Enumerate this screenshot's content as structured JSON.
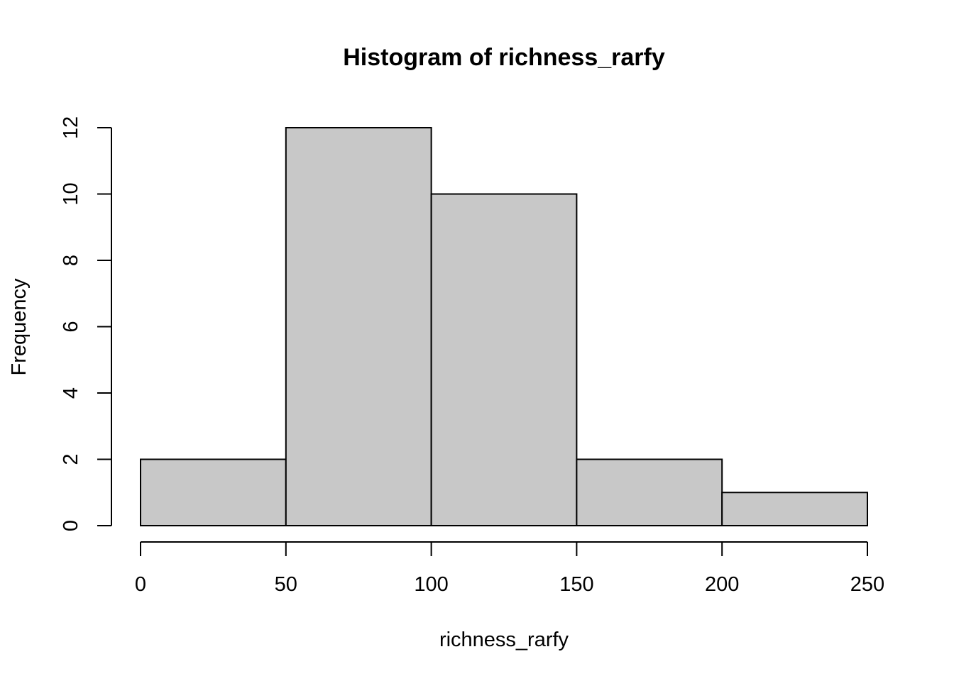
{
  "chart_data": {
    "type": "bar",
    "title": "Histogram of richness_rarfy",
    "xlabel": "richness_rarfy",
    "ylabel": "Frequency",
    "bins": [
      {
        "from": 0,
        "to": 50,
        "count": 2
      },
      {
        "from": 50,
        "to": 100,
        "count": 12
      },
      {
        "from": 100,
        "to": 150,
        "count": 10
      },
      {
        "from": 150,
        "to": 200,
        "count": 2
      },
      {
        "from": 200,
        "to": 250,
        "count": 1
      }
    ],
    "x_ticks": [
      0,
      50,
      100,
      150,
      200,
      250
    ],
    "y_ticks": [
      0,
      2,
      4,
      6,
      8,
      10,
      12
    ],
    "xlim": [
      0,
      250
    ],
    "ylim": [
      0,
      12
    ],
    "grid": false,
    "bar_color": "#c8c8c8",
    "edge_color": "#000000"
  }
}
